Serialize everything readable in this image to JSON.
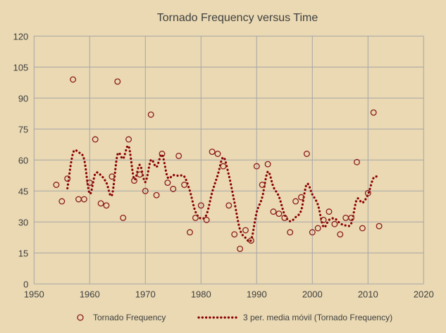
{
  "chart_data": {
    "type": "scatter",
    "title": "Tornado Frequency versus Time",
    "xlabel": "",
    "ylabel": "",
    "xlim": [
      1950,
      2020
    ],
    "ylim": [
      0,
      120
    ],
    "xticks": [
      1950,
      1960,
      1970,
      1980,
      1990,
      2000,
      2010,
      2020
    ],
    "yticks": [
      0,
      15,
      30,
      45,
      60,
      75,
      90,
      105,
      120
    ],
    "grid": true,
    "legend_position": "bottom",
    "colors": {
      "marker": "#8b1a1a",
      "trend": "#8b0000",
      "background": "#ead9b3",
      "grid": "#a6a6a6"
    },
    "series": [
      {
        "name": "Tornado Frequency",
        "marker": "open-circle",
        "x": [
          1954,
          1955,
          1956,
          1957,
          1958,
          1959,
          1960,
          1961,
          1962,
          1963,
          1964,
          1965,
          1966,
          1967,
          1968,
          1969,
          1970,
          1971,
          1972,
          1973,
          1974,
          1975,
          1976,
          1977,
          1978,
          1979,
          1980,
          1981,
          1982,
          1983,
          1984,
          1985,
          1986,
          1987,
          1988,
          1989,
          1990,
          1991,
          1992,
          1993,
          1994,
          1995,
          1996,
          1997,
          1998,
          1999,
          2000,
          2001,
          2002,
          2003,
          2004,
          2005,
          2006,
          2007,
          2008,
          2009,
          2010,
          2011,
          2012
        ],
        "y": [
          48,
          40,
          51,
          99,
          41,
          41,
          49,
          70,
          39,
          38,
          52,
          98,
          32,
          70,
          50,
          53,
          45,
          82,
          43,
          63,
          49,
          46,
          62,
          48,
          25,
          32,
          38,
          31,
          64,
          63,
          57,
          38,
          24,
          17,
          26,
          21,
          57,
          48,
          58,
          35,
          34,
          32,
          25,
          40,
          42,
          63,
          25,
          27,
          31,
          35,
          29,
          24,
          32,
          32,
          59,
          27,
          44,
          83,
          28
        ]
      },
      {
        "name": "3 per. media móvil (Tornado Frequency)",
        "type": "moving-average",
        "period": 3,
        "style": "dotted"
      }
    ]
  }
}
